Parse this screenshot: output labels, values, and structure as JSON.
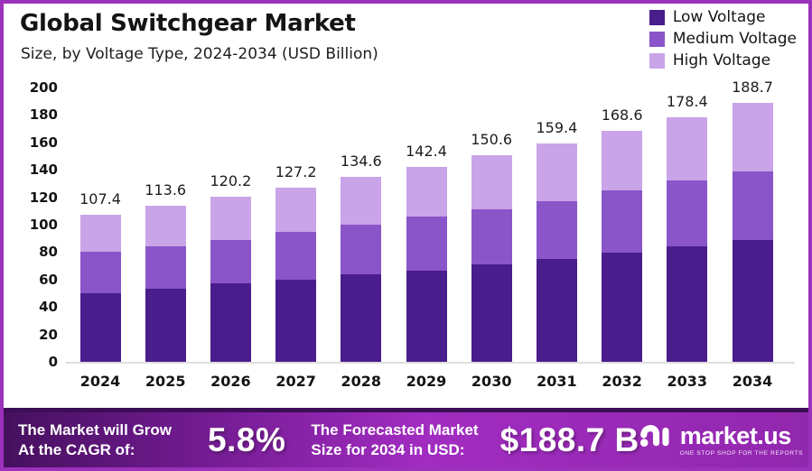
{
  "header": {
    "title": "Global Switchgear Market",
    "subtitle": "Size, by  Voltage Type, 2024-2034 (USD Billion)"
  },
  "legend": [
    {
      "label": "Low Voltage",
      "color": "#4A1D8C"
    },
    {
      "label": "Medium Voltage",
      "color": "#8A55C8"
    },
    {
      "label": "High Voltage",
      "color": "#C9A4E8"
    }
  ],
  "chart_data": {
    "type": "bar",
    "stacked": true,
    "title": "Global Switchgear Market Size, by Voltage Type, 2024-2034 (USD Billion)",
    "categories": [
      "2024",
      "2025",
      "2026",
      "2027",
      "2028",
      "2029",
      "2030",
      "2031",
      "2032",
      "2033",
      "2034"
    ],
    "series": [
      {
        "name": "Low Voltage",
        "color": "#4A1D8C",
        "values": [
          50.0,
          53.0,
          57.0,
          60.0,
          64.0,
          66.5,
          71.0,
          75.0,
          79.5,
          84.0,
          88.5
        ]
      },
      {
        "name": "Medium Voltage",
        "color": "#8A55C8",
        "values": [
          30.0,
          31.0,
          32.0,
          35.0,
          36.0,
          39.5,
          40.0,
          42.0,
          45.5,
          48.0,
          50.5
        ]
      },
      {
        "name": "High Voltage",
        "color": "#C9A4E8",
        "values": [
          27.4,
          29.6,
          31.2,
          32.2,
          34.6,
          36.4,
          39.6,
          42.4,
          43.6,
          46.4,
          49.7
        ]
      }
    ],
    "totals": [
      "107.4",
      "113.6",
      "120.2",
      "127.2",
      "134.6",
      "142.4",
      "150.6",
      "159.4",
      "168.6",
      "178.4",
      "188.7"
    ],
    "xlabel": "",
    "ylabel": "",
    "ylim": [
      0,
      200
    ],
    "yticks": [
      "0",
      "20",
      "40",
      "60",
      "80",
      "100",
      "120",
      "140",
      "160",
      "180",
      "200"
    ],
    "grid": false,
    "legend_position": "top-right"
  },
  "footer": {
    "cagr_label_line1": "The Market will Grow",
    "cagr_label_line2": "At the CAGR of:",
    "cagr_value": "5.8%",
    "forecast_label_line1": "The Forecasted Market",
    "forecast_label_line2": "Size for 2034 in USD:",
    "forecast_value": "$188.7 B",
    "brand": {
      "name": "market.us",
      "tagline": "ONE STOP SHOP FOR THE REPORTS"
    }
  },
  "colors": {
    "frame_border": "#9C31BB",
    "band_dark": "#45105E",
    "band_bright": "#A12CC0",
    "axis_line": "#DEDEDE",
    "text": "#141414"
  }
}
